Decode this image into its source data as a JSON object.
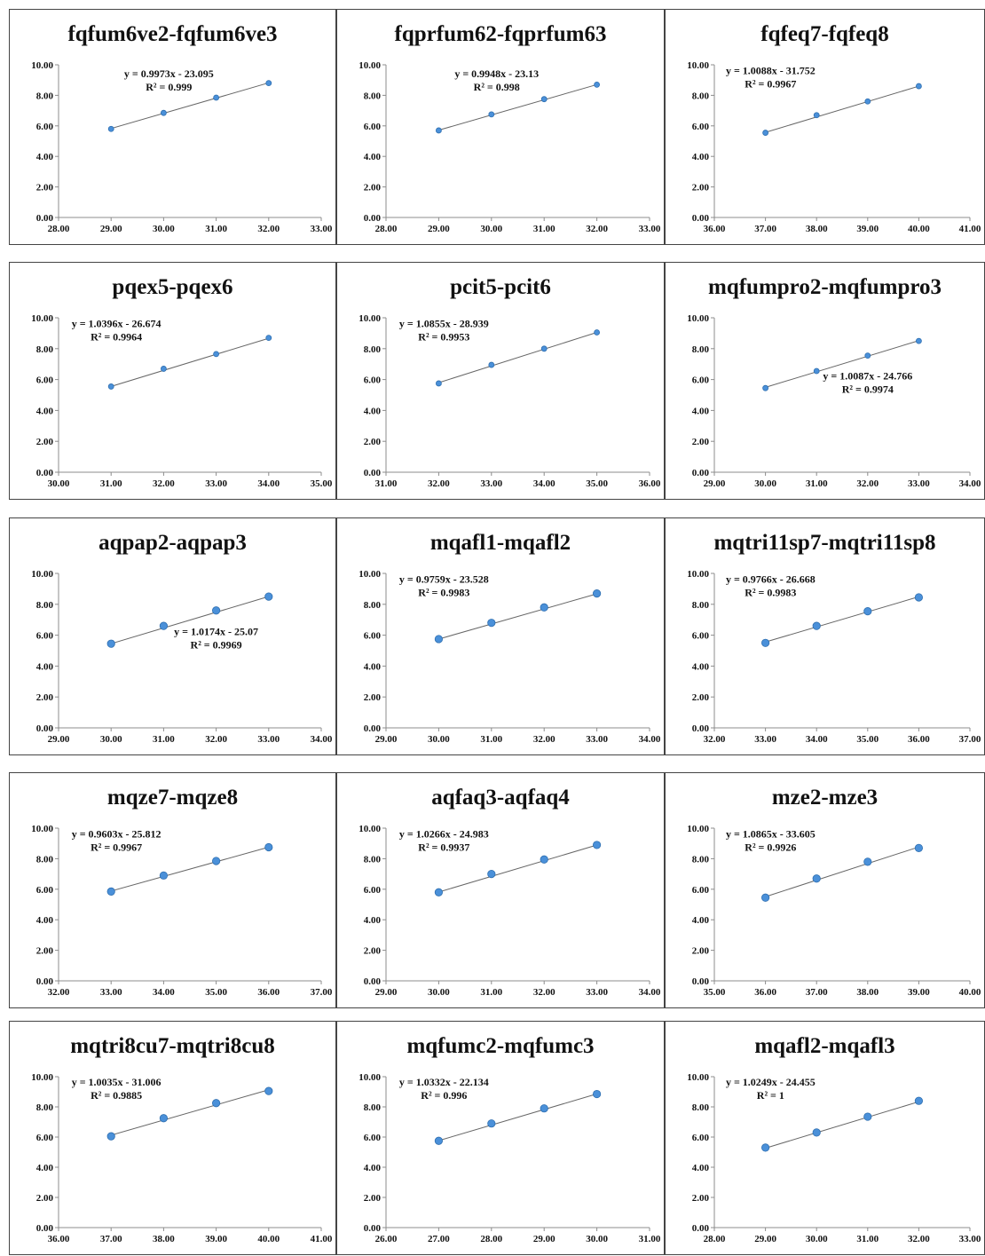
{
  "colors": {
    "marker": "#4a90d9",
    "marker_stroke": "#2f6fb0",
    "trendline": "#666666",
    "axis": "#8c8c8c",
    "text": "#111111"
  },
  "chart_data": [
    {
      "type": "scatter",
      "title": "fqfum6ve2-fqfum6ve3",
      "x": [
        29,
        30,
        31,
        32
      ],
      "y": [
        5.8,
        6.85,
        7.85,
        8.8
      ],
      "xlim": [
        28,
        33
      ],
      "ylim": [
        0,
        10
      ],
      "x_ticks": [
        "28.00",
        "29.00",
        "30.00",
        "31.00",
        "32.00",
        "33.00"
      ],
      "y_ticks": [
        "0.00",
        "2.00",
        "4.00",
        "6.00",
        "8.00",
        "10.00"
      ],
      "trendline": {
        "slope": 0.9973,
        "intercept": -23.095
      },
      "equation": "y = 0.9973x - 23.095",
      "r2": "R² = 0.999",
      "legend": "top-center",
      "grid": false
    },
    {
      "type": "scatter",
      "title": "fqprfum62-fqprfum63",
      "x": [
        29,
        30,
        31,
        32
      ],
      "y": [
        5.7,
        6.75,
        7.75,
        8.7
      ],
      "xlim": [
        28,
        33
      ],
      "ylim": [
        0,
        10
      ],
      "x_ticks": [
        "28.00",
        "29.00",
        "30.00",
        "31.00",
        "32.00",
        "33.00"
      ],
      "y_ticks": [
        "0.00",
        "2.00",
        "4.00",
        "6.00",
        "8.00",
        "10.00"
      ],
      "trendline": {
        "slope": 0.9948,
        "intercept": -23.13
      },
      "equation": "y = 0.9948x - 23.13",
      "r2": "R² = 0.998",
      "legend": "top-center",
      "grid": false
    },
    {
      "type": "scatter",
      "title": "fqfeq7-fqfeq8",
      "x": [
        37,
        38,
        39,
        40
      ],
      "y": [
        5.55,
        6.7,
        7.6,
        8.6
      ],
      "xlim": [
        36,
        41
      ],
      "ylim": [
        0,
        10
      ],
      "x_ticks": [
        "36.00",
        "37.00",
        "38.00",
        "39.00",
        "40.00",
        "41.00"
      ],
      "y_ticks": [
        "0.00",
        "2.00",
        "4.00",
        "6.00",
        "8.00",
        "10.00"
      ],
      "trendline": {
        "slope": 1.0088,
        "intercept": -31.752
      },
      "equation": "y = 1.0088x - 31.752",
      "r2": "R² = 0.9967",
      "legend": "top-left",
      "grid": false
    },
    {
      "type": "scatter",
      "title": "pqex5-pqex6",
      "x": [
        31,
        32,
        33,
        34
      ],
      "y": [
        5.55,
        6.7,
        7.65,
        8.7
      ],
      "xlim": [
        30,
        35
      ],
      "ylim": [
        0,
        10
      ],
      "x_ticks": [
        "30.00",
        "31.00",
        "32.00",
        "33.00",
        "34.00",
        "35.00"
      ],
      "y_ticks": [
        "0.00",
        "2.00",
        "4.00",
        "6.00",
        "8.00",
        "10.00"
      ],
      "trendline": {
        "slope": 1.0396,
        "intercept": -26.674
      },
      "equation": "y = 1.0396x - 26.674",
      "r2": "R² = 0.9964",
      "legend": "top-left",
      "grid": false
    },
    {
      "type": "scatter",
      "title": "pcit5-pcit6",
      "x": [
        32,
        33,
        34,
        35
      ],
      "y": [
        5.75,
        6.95,
        8.0,
        9.05
      ],
      "xlim": [
        31,
        36
      ],
      "ylim": [
        0,
        10
      ],
      "x_ticks": [
        "31.00",
        "32.00",
        "33.00",
        "34.00",
        "35.00",
        "36.00"
      ],
      "y_ticks": [
        "0.00",
        "2.00",
        "4.00",
        "6.00",
        "8.00",
        "10.00"
      ],
      "trendline": {
        "slope": 1.0855,
        "intercept": -28.939
      },
      "equation": "y = 1.0855x - 28.939",
      "r2": "R² = 0.9953",
      "legend": "top-left",
      "grid": false
    },
    {
      "type": "scatter",
      "title": "mqfumpro2-mqfumpro3",
      "x": [
        30,
        31,
        32,
        33
      ],
      "y": [
        5.45,
        6.55,
        7.55,
        8.5
      ],
      "xlim": [
        29,
        34
      ],
      "ylim": [
        0,
        10
      ],
      "x_ticks": [
        "29.00",
        "30.00",
        "31.00",
        "32.00",
        "33.00",
        "34.00"
      ],
      "y_ticks": [
        "0.00",
        "2.00",
        "4.00",
        "6.00",
        "8.00",
        "10.00"
      ],
      "trendline": {
        "slope": 1.0087,
        "intercept": -24.766
      },
      "equation": "y = 1.0087x - 24.766",
      "r2": "R² = 0.9974",
      "legend": "middle-right",
      "grid": false
    },
    {
      "type": "scatter",
      "title": "aqpap2-aqpap3",
      "x": [
        30,
        31,
        32,
        33
      ],
      "y": [
        5.45,
        6.6,
        7.6,
        8.5
      ],
      "xlim": [
        29,
        34
      ],
      "ylim": [
        0,
        10
      ],
      "x_ticks": [
        "29.00",
        "30.00",
        "31.00",
        "32.00",
        "33.00",
        "34.00"
      ],
      "y_ticks": [
        "0.00",
        "2.00",
        "4.00",
        "6.00",
        "8.00",
        "10.00"
      ],
      "trendline": {
        "slope": 1.0174,
        "intercept": -25.07
      },
      "equation": "y = 1.0174x - 25.07",
      "r2": "R² = 0.9969",
      "legend": "middle-right",
      "grid": false
    },
    {
      "type": "scatter",
      "title": "mqafl1-mqafl2",
      "x": [
        30,
        31,
        32,
        33
      ],
      "y": [
        5.75,
        6.8,
        7.8,
        8.7
      ],
      "xlim": [
        29,
        34
      ],
      "ylim": [
        0,
        10
      ],
      "x_ticks": [
        "29.00",
        "30.00",
        "31.00",
        "32.00",
        "33.00",
        "34.00"
      ],
      "y_ticks": [
        "0.00",
        "2.00",
        "4.00",
        "6.00",
        "8.00",
        "10.00"
      ],
      "trendline": {
        "slope": 0.9759,
        "intercept": -23.528
      },
      "equation": "y = 0.9759x - 23.528",
      "r2": "R² = 0.9983",
      "legend": "top-left",
      "grid": false
    },
    {
      "type": "scatter",
      "title": "mqtri11sp7-mqtri11sp8",
      "x": [
        33,
        34,
        35,
        36
      ],
      "y": [
        5.5,
        6.6,
        7.55,
        8.45
      ],
      "xlim": [
        32,
        37
      ],
      "ylim": [
        0,
        10
      ],
      "x_ticks": [
        "32.00",
        "33.00",
        "34.00",
        "35.00",
        "36.00",
        "37.00"
      ],
      "y_ticks": [
        "0.00",
        "2.00",
        "4.00",
        "6.00",
        "8.00",
        "10.00"
      ],
      "trendline": {
        "slope": 0.9766,
        "intercept": -26.668
      },
      "equation": "y = 0.9766x - 26.668",
      "r2": "R² = 0.9983",
      "legend": "top-left",
      "grid": false
    },
    {
      "type": "scatter",
      "title": "mqze7-mqze8",
      "x": [
        33,
        34,
        35,
        36
      ],
      "y": [
        5.85,
        6.9,
        7.85,
        8.75
      ],
      "xlim": [
        32,
        37
      ],
      "ylim": [
        0,
        10
      ],
      "x_ticks": [
        "32.00",
        "33.00",
        "34.00",
        "35.00",
        "36.00",
        "37.00"
      ],
      "y_ticks": [
        "0.00",
        "2.00",
        "4.00",
        "6.00",
        "8.00",
        "10.00"
      ],
      "trendline": {
        "slope": 0.9603,
        "intercept": -25.812
      },
      "equation": "y = 0.9603x - 25.812",
      "r2": "R² = 0.9967",
      "legend": "top-left",
      "grid": false
    },
    {
      "type": "scatter",
      "title": "aqfaq3-aqfaq4",
      "x": [
        30,
        31,
        32,
        33
      ],
      "y": [
        5.8,
        7.0,
        7.95,
        8.9
      ],
      "xlim": [
        29,
        34
      ],
      "ylim": [
        0,
        10
      ],
      "x_ticks": [
        "29.00",
        "30.00",
        "31.00",
        "32.00",
        "33.00",
        "34.00"
      ],
      "y_ticks": [
        "0.00",
        "2.00",
        "4.00",
        "6.00",
        "8.00",
        "10.00"
      ],
      "trendline": {
        "slope": 1.0266,
        "intercept": -24.983
      },
      "equation": "y = 1.0266x - 24.983",
      "r2": "R² = 0.9937",
      "legend": "top-left",
      "grid": false
    },
    {
      "type": "scatter",
      "title": "mze2-mze3",
      "x": [
        36,
        37,
        38,
        39
      ],
      "y": [
        5.45,
        6.7,
        7.8,
        8.7
      ],
      "xlim": [
        35,
        40
      ],
      "ylim": [
        0,
        10
      ],
      "x_ticks": [
        "35.00",
        "36.00",
        "37.00",
        "38.00",
        "39.00",
        "40.00"
      ],
      "y_ticks": [
        "0.00",
        "2.00",
        "4.00",
        "6.00",
        "8.00",
        "10.00"
      ],
      "trendline": {
        "slope": 1.0865,
        "intercept": -33.605
      },
      "equation": "y = 1.0865x - 33.605",
      "r2": "R² = 0.9926",
      "legend": "top-left",
      "grid": false
    },
    {
      "type": "scatter",
      "title": "mqtri8cu7-mqtri8cu8",
      "x": [
        37,
        38,
        39,
        40
      ],
      "y": [
        6.05,
        7.25,
        8.25,
        9.05
      ],
      "xlim": [
        36,
        41
      ],
      "ylim": [
        0,
        10
      ],
      "x_ticks": [
        "36.00",
        "37.00",
        "38.00",
        "39.00",
        "40.00",
        "41.00"
      ],
      "y_ticks": [
        "0.00",
        "2.00",
        "4.00",
        "6.00",
        "8.00",
        "10.00"
      ],
      "trendline": {
        "slope": 1.0035,
        "intercept": -31.006
      },
      "equation": "y = 1.0035x - 31.006",
      "r2": "R² = 0.9885",
      "legend": "top-left",
      "grid": false
    },
    {
      "type": "scatter",
      "title": "mqfumc2-mqfumc3",
      "x": [
        27,
        28,
        29,
        30
      ],
      "y": [
        5.75,
        6.9,
        7.9,
        8.85
      ],
      "xlim": [
        26,
        31
      ],
      "ylim": [
        0,
        10
      ],
      "x_ticks": [
        "26.00",
        "27.00",
        "28.00",
        "29.00",
        "30.00",
        "31.00"
      ],
      "y_ticks": [
        "0.00",
        "2.00",
        "4.00",
        "6.00",
        "8.00",
        "10.00"
      ],
      "trendline": {
        "slope": 1.0332,
        "intercept": -22.134
      },
      "equation": "y = 1.0332x - 22.134",
      "r2": "R² = 0.996",
      "legend": "top-left",
      "grid": false
    },
    {
      "type": "scatter",
      "title": "mqafl2-mqafl3",
      "x": [
        29,
        30,
        31,
        32
      ],
      "y": [
        5.3,
        6.3,
        7.35,
        8.4
      ],
      "xlim": [
        28,
        33
      ],
      "ylim": [
        0,
        10
      ],
      "x_ticks": [
        "28.00",
        "29.00",
        "30.00",
        "31.00",
        "32.00",
        "33.00"
      ],
      "y_ticks": [
        "0.00",
        "2.00",
        "4.00",
        "6.00",
        "8.00",
        "10.00"
      ],
      "trendline": {
        "slope": 1.0249,
        "intercept": -24.455
      },
      "equation": "y = 1.0249x - 24.455",
      "r2": "R² = 1",
      "legend": "top-left",
      "grid": false
    }
  ]
}
